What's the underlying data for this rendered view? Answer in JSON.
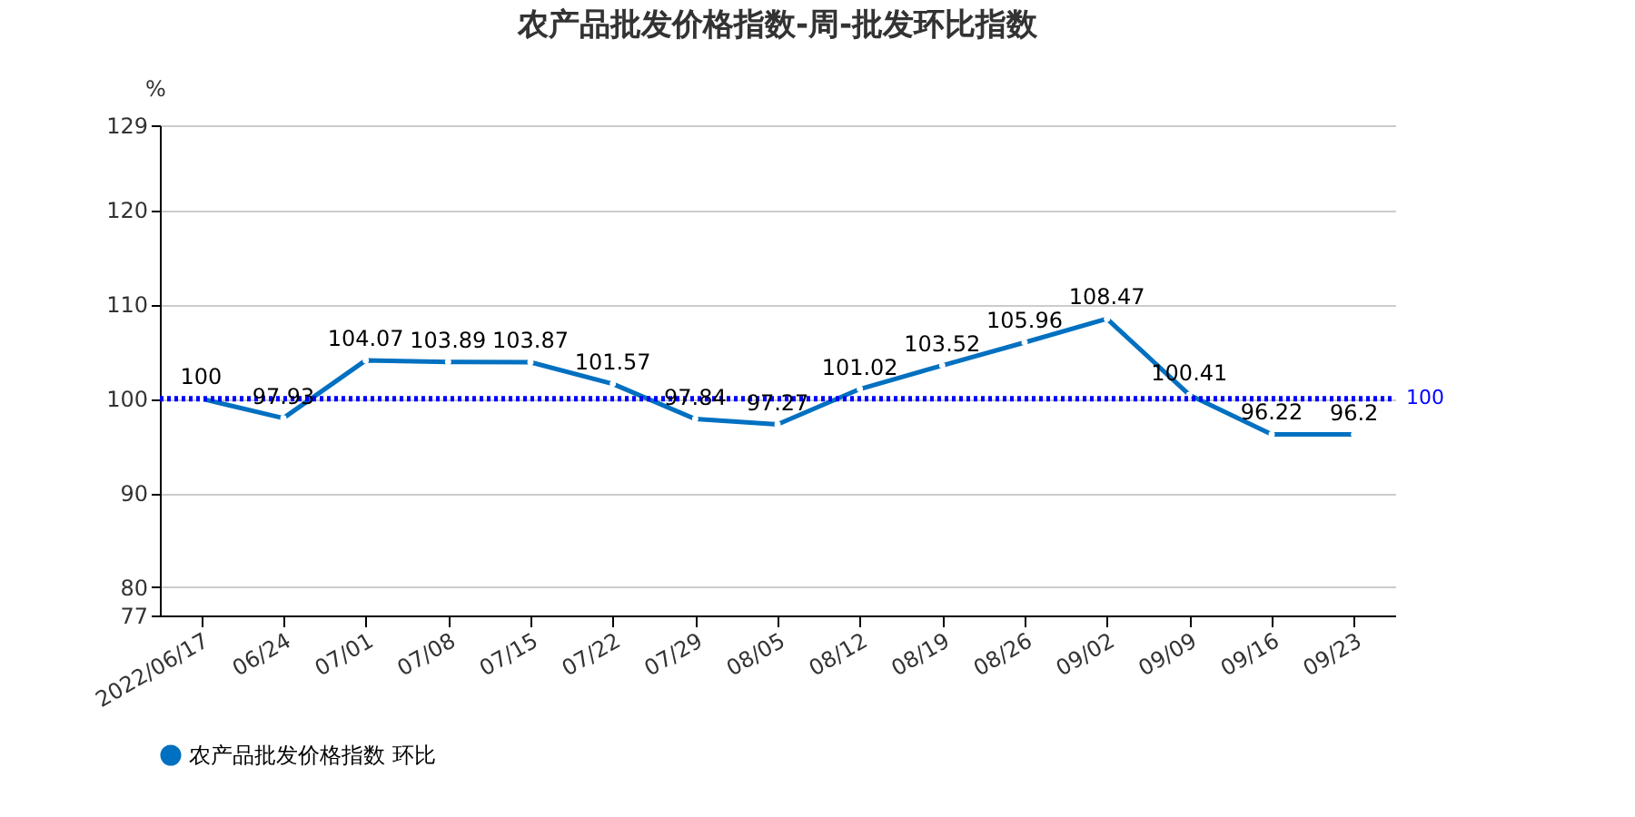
{
  "chart_data": {
    "type": "line",
    "title": "农产品批发价格指数-周-批发环比指数",
    "ylabel": "%",
    "categories": [
      "2022/06/17",
      "06/24",
      "07/01",
      "07/08",
      "07/15",
      "07/22",
      "07/29",
      "08/05",
      "08/12",
      "08/19",
      "08/26",
      "09/02",
      "09/09",
      "09/16",
      "09/23"
    ],
    "series": [
      {
        "name": "农产品批发价格指数 环比",
        "color": "#0070c0",
        "values": [
          100,
          97.93,
          104.07,
          103.89,
          103.87,
          101.57,
          97.84,
          97.27,
          101.02,
          103.52,
          105.96,
          108.47,
          100.41,
          96.22,
          96.2
        ]
      }
    ],
    "ylim": [
      77,
      129
    ],
    "yticks": [
      77,
      80,
      90,
      100,
      110,
      120,
      129
    ],
    "ref_lines": [
      {
        "axis": "y",
        "value": 100,
        "label": "100",
        "color": "#0000ff",
        "line_style": "dotted"
      }
    ],
    "grid": "y",
    "legend": "bottom",
    "marker": "circle",
    "line_style": "solid",
    "data_labels": true
  }
}
